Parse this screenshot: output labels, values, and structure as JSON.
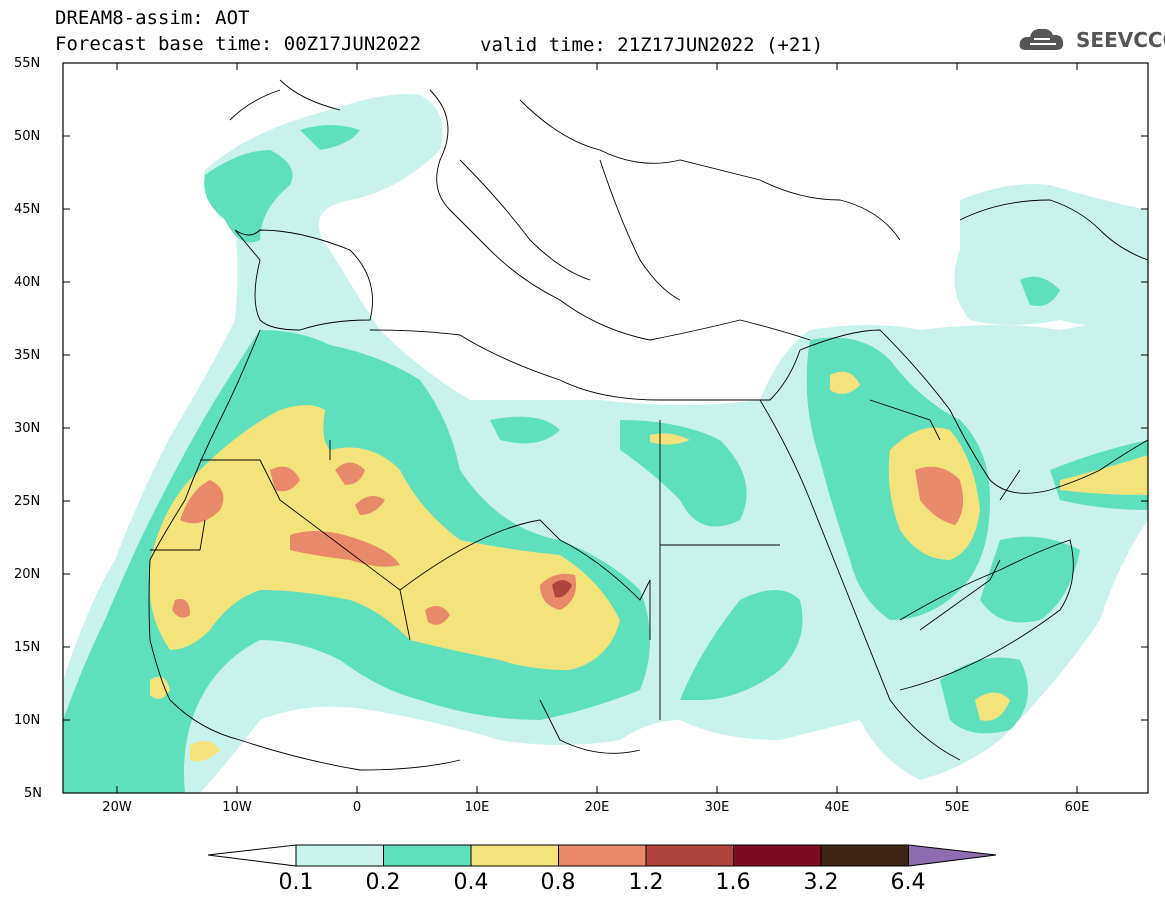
{
  "header": {
    "title": "DREAM8-assim: AOT",
    "base_time": "Forecast base time: 00Z17JUN2022",
    "valid_time": "valid time: 21Z17JUN2022 (+21)"
  },
  "logo": {
    "text": "SEEVCCC",
    "icon": "cloud-logo-icon"
  },
  "map": {
    "lat_labels": [
      "55N",
      "50N",
      "45N",
      "40N",
      "35N",
      "30N",
      "25N",
      "20N",
      "15N",
      "10N",
      "5N"
    ],
    "lon_labels": [
      "20W",
      "10W",
      "0",
      "10E",
      "20E",
      "30E",
      "40E",
      "50E",
      "60E"
    ],
    "colors": {
      "c1": "#c8f3ec",
      "c2": "#5fe0bd",
      "c3": "#f4e27a",
      "c4": "#e8896a",
      "c5": "#b0433b",
      "c6": "#7e0a22",
      "c7": "#3d2616",
      "c8": "#8e6db0"
    }
  },
  "colorbar": {
    "labels": [
      "0.1",
      "0.2",
      "0.4",
      "0.8",
      "1.2",
      "1.6",
      "3.2",
      "6.4"
    ],
    "colors": [
      "#c8f3ec",
      "#5fe0bd",
      "#f4e27a",
      "#e8896a",
      "#b0433b",
      "#7e0a22",
      "#3d2616"
    ],
    "under_color": "#ffffff",
    "over_color": "#8e6db0"
  }
}
